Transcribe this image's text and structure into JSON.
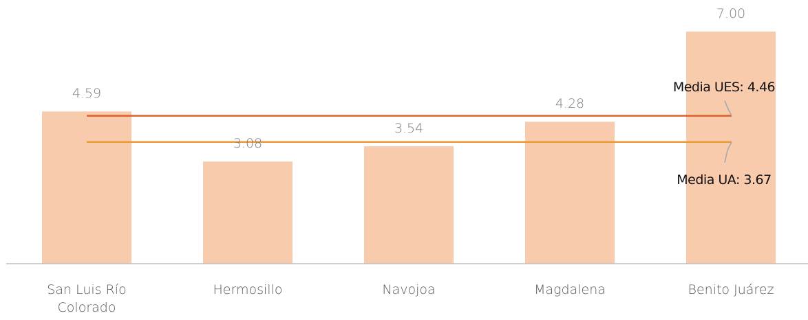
{
  "chart_data": {
    "type": "bar",
    "categories": [
      "San Luis Río Colorado",
      "Hermosillo",
      "Navojoa",
      "Magdalena",
      "Benito Juárez"
    ],
    "values": [
      4.59,
      3.08,
      3.54,
      4.28,
      7.0
    ],
    "value_labels": [
      "4.59",
      "3.08",
      "3.54",
      "4.28",
      "7.00"
    ],
    "color": "#f8cbad",
    "ylim": [
      0,
      7
    ],
    "reference_lines": [
      {
        "label": "Media UES: 4.46",
        "value": 4.46,
        "color": "#d9622b"
      },
      {
        "label": "Media UA: 3.67",
        "value": 3.67,
        "color": "#ed9a35"
      }
    ]
  }
}
